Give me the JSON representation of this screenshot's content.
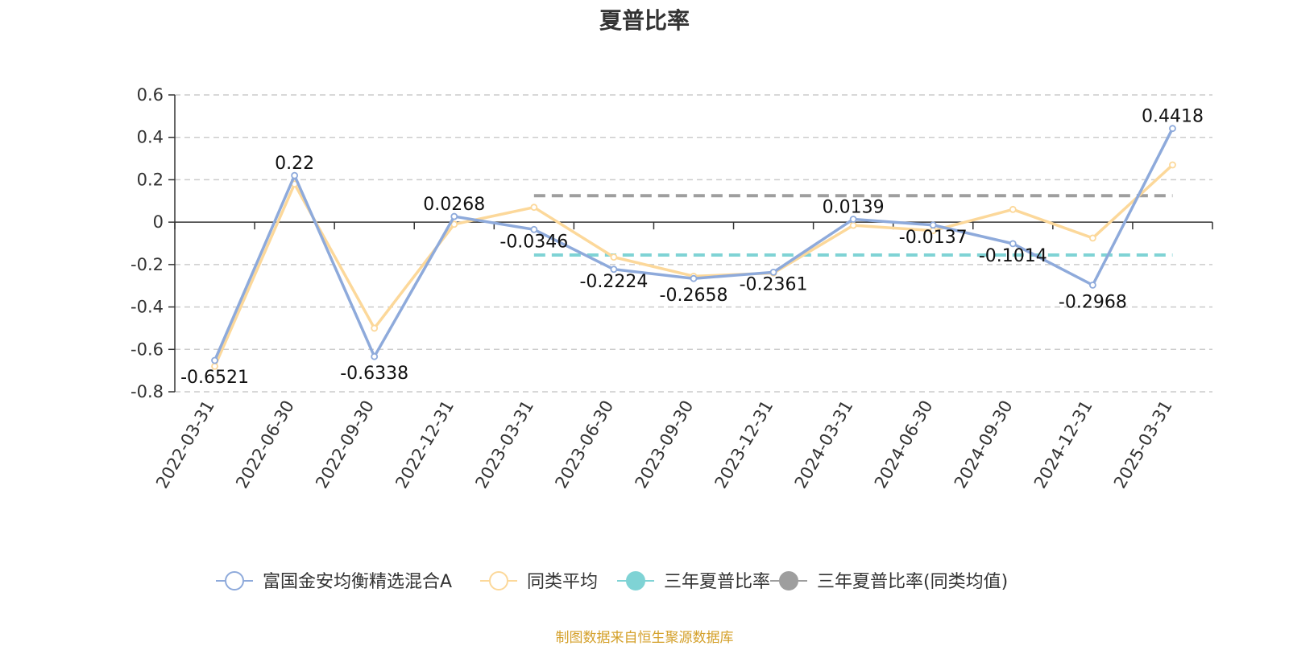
{
  "chart_data": {
    "type": "line",
    "title": "夏普比率",
    "categories": [
      "2022-03-31",
      "2022-06-30",
      "2022-09-30",
      "2022-12-31",
      "2023-03-31",
      "2023-06-30",
      "2023-09-30",
      "2023-12-31",
      "2024-03-31",
      "2024-06-30",
      "2024-09-30",
      "2024-12-31",
      "2025-03-31"
    ],
    "ylim": [
      -0.8,
      0.6
    ],
    "yticks": [
      "0.6",
      "0.4",
      "0.2",
      "0",
      "-0.2",
      "-0.4",
      "-0.6",
      "-0.8"
    ],
    "grid": true,
    "legend_position": "bottom",
    "series": [
      {
        "name": "富国金安均衡精选混合A",
        "color": "#8eaadb",
        "values": [
          -0.6521,
          0.22,
          -0.6338,
          0.0268,
          -0.0346,
          -0.2224,
          -0.2658,
          -0.2361,
          0.0139,
          -0.0137,
          -0.1014,
          -0.2968,
          0.4418
        ],
        "labels": [
          "-0.6521",
          "0.22",
          "-0.6338",
          "0.0268",
          "-0.0346",
          "-0.2224",
          "-0.2658",
          "-0.2361",
          "0.0139",
          "-0.0137",
          "-0.1014",
          "-0.2968",
          "0.4418"
        ]
      },
      {
        "name": "同类平均",
        "color": "#fcd89a",
        "values": [
          -0.68,
          0.18,
          -0.5,
          -0.01,
          0.07,
          -0.165,
          -0.255,
          -0.24,
          -0.015,
          -0.04,
          0.06,
          -0.075,
          0.27
        ]
      },
      {
        "name": "三年夏普比率",
        "color": "#7fd3d5",
        "type": "reference",
        "value": -0.155,
        "from_index": 4,
        "to_index": 12
      },
      {
        "name": "三年夏普比率(同类均值)",
        "color": "#9e9e9e",
        "type": "reference",
        "value": 0.125,
        "from_index": 4,
        "to_index": 12
      }
    ]
  },
  "footer": {
    "source": "制图数据来自恒生聚源数据库",
    "source_color": "#d4a02a"
  }
}
